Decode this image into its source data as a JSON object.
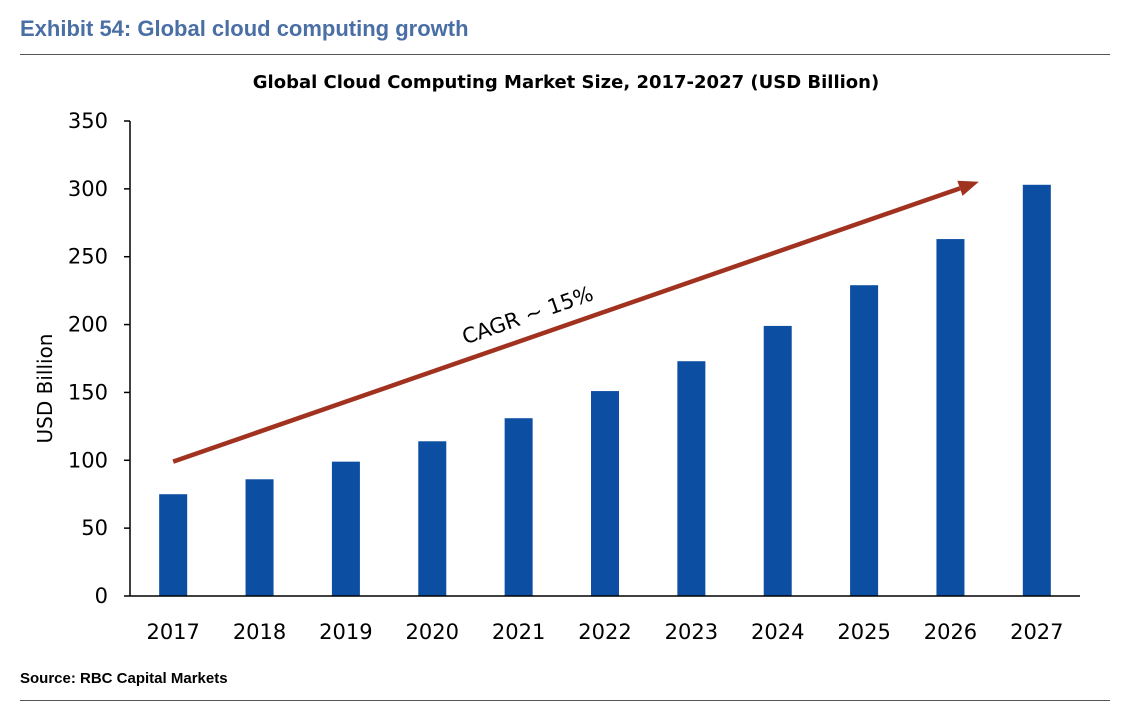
{
  "header": {
    "exhibit_title": "Exhibit 54: Global cloud computing growth"
  },
  "footer": {
    "source": "Source: RBC Capital Markets"
  },
  "colors": {
    "bar": "#0b4ea2",
    "arrow": "#a0321f",
    "title": "#4a6fa5"
  },
  "chart_data": {
    "type": "bar",
    "title": "Global Cloud Computing Market Size, 2017-2027 (USD Billion)",
    "xlabel": "",
    "ylabel": "USD Billion",
    "categories": [
      "2017",
      "2018",
      "2019",
      "2020",
      "2021",
      "2022",
      "2023",
      "2024",
      "2025",
      "2026",
      "2027"
    ],
    "values": [
      75,
      86,
      99,
      114,
      131,
      151,
      173,
      199,
      229,
      263,
      303
    ],
    "ylim": [
      0,
      350
    ],
    "yticks": [
      0,
      50,
      100,
      150,
      200,
      250,
      300,
      350
    ],
    "grid": false,
    "annotation": {
      "text": "CAGR ~ 15%",
      "arrow_from": {
        "category": "2017",
        "value": 99
      },
      "arrow_to": {
        "category": "2027",
        "value": 303
      }
    }
  }
}
